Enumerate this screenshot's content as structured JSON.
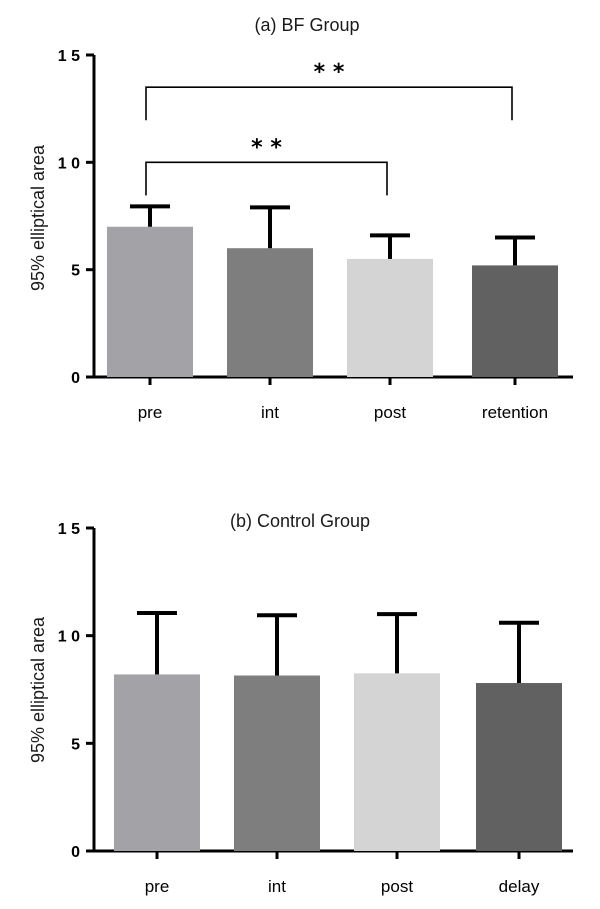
{
  "chart_data": [
    {
      "type": "bar",
      "title": "(a) BF Group",
      "ylabel": "95%  elliptical area",
      "xlabel": "",
      "ylim": [
        0,
        15
      ],
      "yticks": [
        0,
        5,
        10,
        15
      ],
      "categories": [
        "pre",
        "int",
        "post",
        "retention"
      ],
      "values": [
        7.0,
        6.0,
        5.5,
        5.2
      ],
      "errors": [
        0.95,
        1.9,
        1.1,
        1.3
      ],
      "colors": [
        "#a2a2a7",
        "#7e7e7e",
        "#d4d4d4",
        "#616161"
      ],
      "significance": [
        {
          "from": "pre",
          "to": "post",
          "label": "* *",
          "level": 10.0
        },
        {
          "from": "pre",
          "to": "retention",
          "label": "* *",
          "level": 13.5
        }
      ],
      "grid": false
    },
    {
      "type": "bar",
      "title": "(b) Control Group",
      "ylabel": "95%  elliptical area",
      "xlabel": "",
      "ylim": [
        0,
        15
      ],
      "yticks": [
        0,
        5,
        10,
        15
      ],
      "categories": [
        "pre",
        "int",
        "post",
        "delay"
      ],
      "values": [
        8.2,
        8.15,
        8.25,
        7.8
      ],
      "errors": [
        2.85,
        2.8,
        2.75,
        2.8
      ],
      "colors": [
        "#a2a2a7",
        "#7e7e7e",
        "#d4d4d4",
        "#616161"
      ],
      "significance": [],
      "grid": false
    }
  ]
}
